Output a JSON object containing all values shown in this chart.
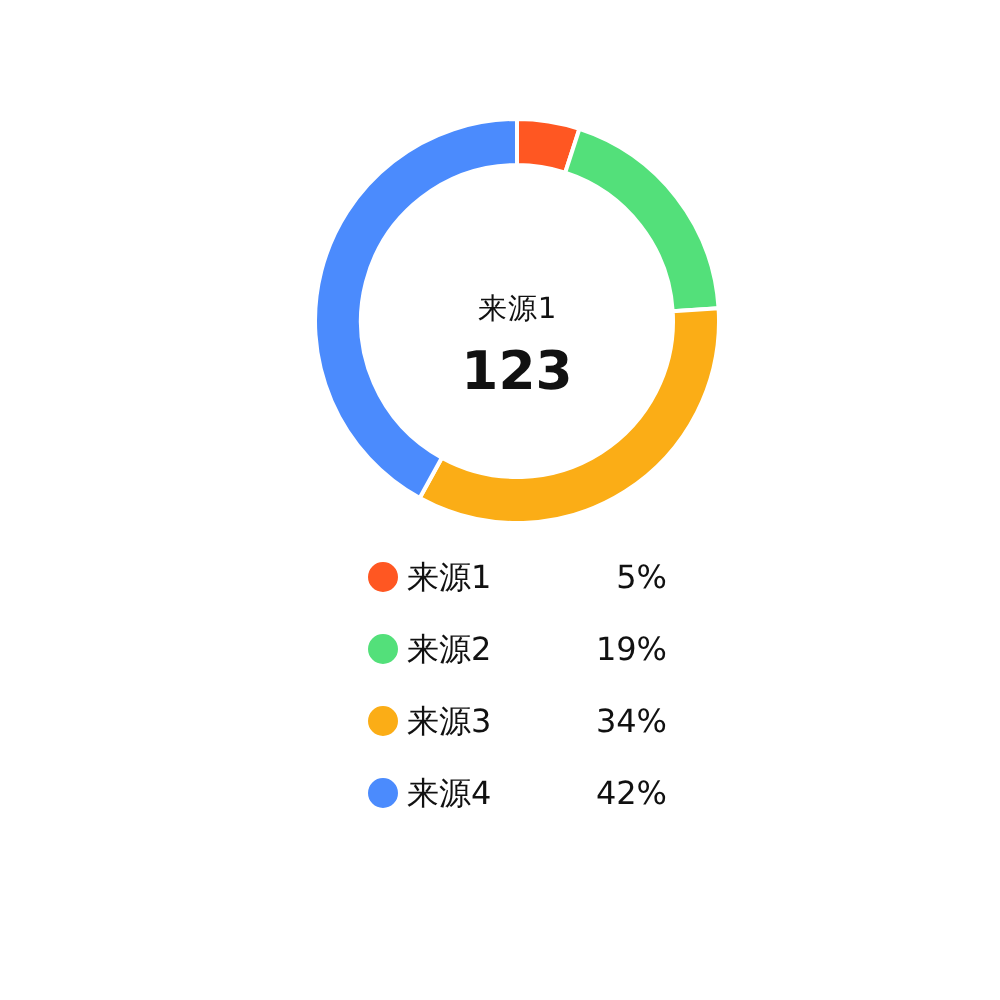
{
  "chart_data": {
    "type": "donut",
    "categories": [
      "来源1",
      "来源2",
      "来源3",
      "来源4"
    ],
    "values": [
      5,
      19,
      34,
      42
    ],
    "colors": [
      "#ff5722",
      "#53e07a",
      "#fbad16",
      "#4b8bfd"
    ],
    "annotations": [
      "来源1",
      "123"
    ],
    "legend": "bottom",
    "value_labels": [
      "5%",
      "19%",
      "34%",
      "42%"
    ]
  }
}
